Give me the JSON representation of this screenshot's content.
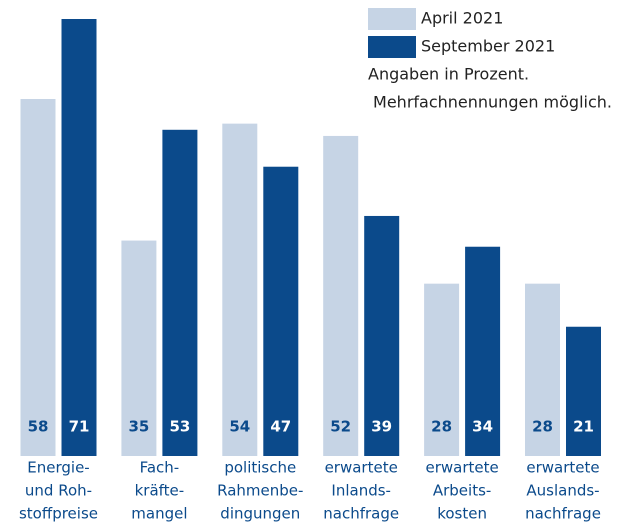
{
  "chart_data": {
    "type": "bar",
    "categories": [
      [
        "Energie-",
        "und Roh-",
        "stoffpreise"
      ],
      [
        "Fach-",
        "kräfte-",
        "mangel"
      ],
      [
        "politische",
        "Rahmenbe-",
        "dingungen"
      ],
      [
        "erwartete",
        "Inlands-",
        "nachfrage"
      ],
      [
        "erwartete",
        "Arbeits-",
        "kosten"
      ],
      [
        "erwartete",
        "Auslands-",
        "nachfrage"
      ]
    ],
    "series": [
      {
        "name": "April 2021",
        "color": "#c6d4e5",
        "values": [
          58,
          35,
          54,
          52,
          28,
          28
        ]
      },
      {
        "name": "September 2021",
        "color": "#0b4a8b",
        "values": [
          71,
          53,
          47,
          39,
          34,
          21
        ]
      }
    ],
    "annotations": [
      "Angaben in Prozent.",
      "Mehrfachnennungen möglich."
    ]
  }
}
